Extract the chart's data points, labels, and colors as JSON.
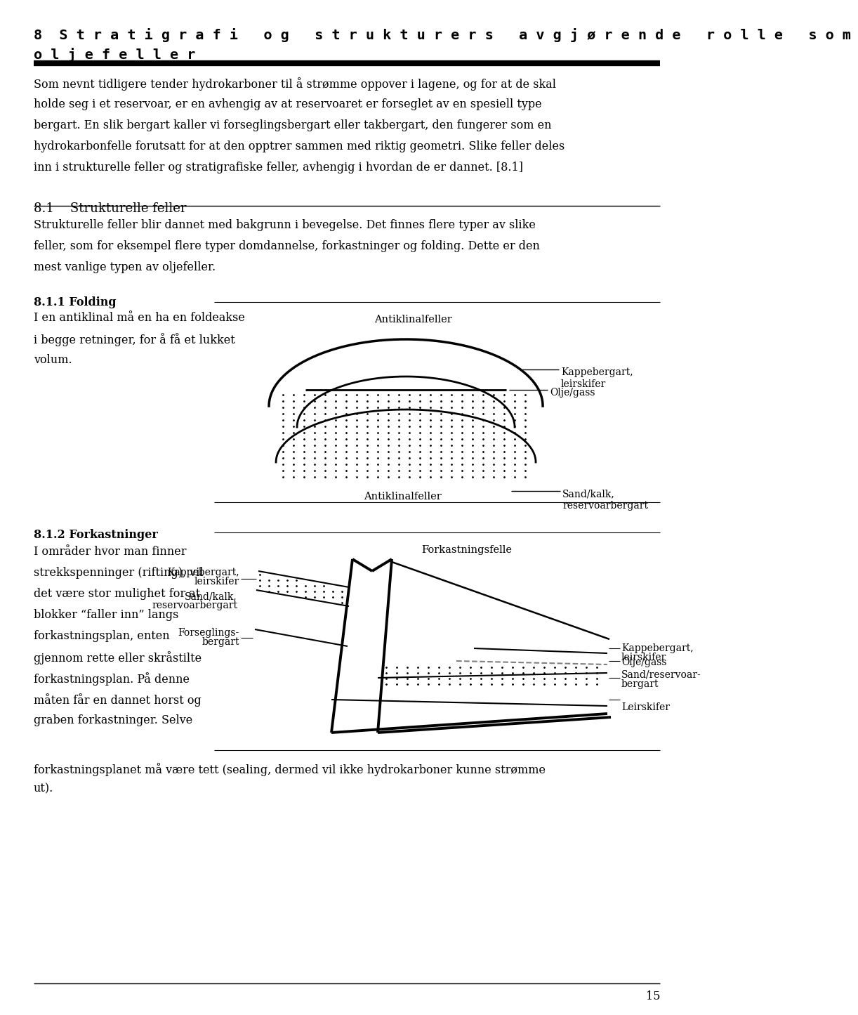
{
  "title_line1": "8  S t r a t i g r a f i   o g   s t r u k t u r e r s   a v g j ø r e n d e   r o l l e   s o m",
  "title_line2": "o l j e f e l l e r",
  "body_text": [
    "Som nevnt tidligere tender hydrokarboner til å strømme oppover i lagene, og for at de skal",
    "holde seg i et reservoar, er en avhengig av at reservoaret er forseglet av en spesiell type",
    "bergart. En slik bergart kaller vi forseglingsbergart eller takbergart, den fungerer som en",
    "hydrokarbonfelle forutsatt for at den opptrer sammen med riktig geometri. Slike feller deles",
    "inn i strukturelle feller og stratigrafiske feller, avhengig i hvordan de er dannet. [8.1]"
  ],
  "section_81_title": "8.1    Strukturelle feller",
  "section_81_text": [
    "Strukturelle feller blir dannet med bakgrunn i bevegelse. Det finnes flere typer av slike",
    "feller, som for eksempel flere typer domdannelse, forkastninger og folding. Dette er den",
    "mest vanlige typen av oljefeller."
  ],
  "section_811_title": "8.1.1 Folding",
  "section_811_left_text": [
    "I en antiklinal må en ha en foldeakse",
    "i begge retninger, for å få et lukket",
    "volum."
  ],
  "section_812_title": "8.1.2 Forkastninger",
  "section_812_left_text": [
    "I områder hvor man finner",
    "strekkspenninger (rifting), vil",
    "det være stor mulighet for at",
    "blokker “faller inn” langs",
    "forkastningsplan, enten",
    "gjennom rette eller skråstilte",
    "forkastningsplan. På denne",
    "måten får en dannet horst og",
    "graben forkastninger. Selve"
  ],
  "footer_text": [
    "forkastningsplanet må være tett (sealing, dermed vil ikke hydrokarboner kunne strømme",
    "ut)."
  ],
  "page_number": "15",
  "bg_color": "#ffffff",
  "text_color": "#000000"
}
